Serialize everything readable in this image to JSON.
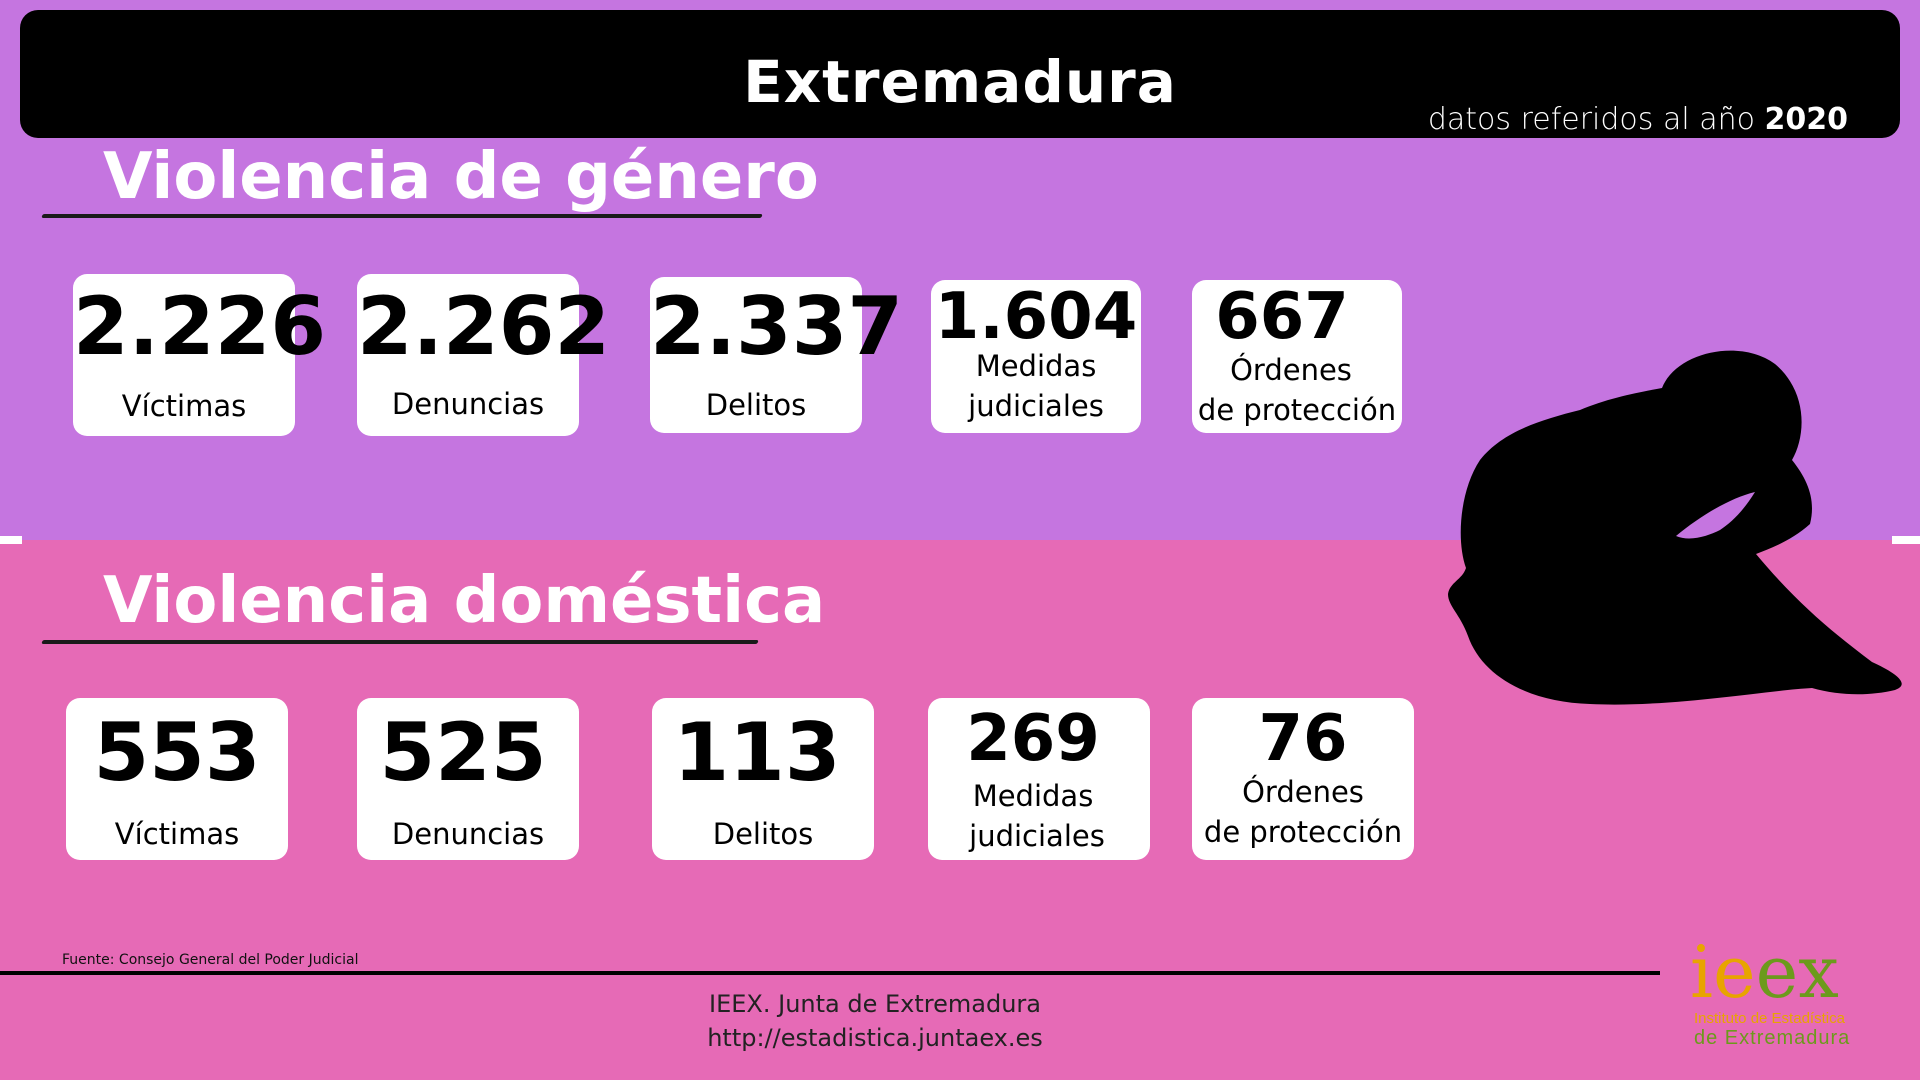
{
  "header": {
    "title": "Extremadura",
    "subtitle_prefix": "datos referidos al año ",
    "year": "2020"
  },
  "genero": {
    "title": "Violencia de género",
    "cards": [
      {
        "value": "2.226",
        "label": "Víctimas"
      },
      {
        "value": "2.262",
        "label": "Denuncias"
      },
      {
        "value": "2.337",
        "label": "Delitos"
      },
      {
        "value": "1.604",
        "label_line1": "Medidas",
        "label_line2": "judiciales"
      },
      {
        "value": "667",
        "label_line1": "Órdenes",
        "label_line2": "de protección"
      }
    ]
  },
  "domestica": {
    "title": "Violencia doméstica",
    "cards": [
      {
        "value": "553",
        "label": "Víctimas"
      },
      {
        "value": "525",
        "label": "Denuncias"
      },
      {
        "value": "113",
        "label": "Delitos"
      },
      {
        "value": "269",
        "label_line1": "Medidas",
        "label_line2": "judiciales"
      },
      {
        "value": "76",
        "label_line1": "Órdenes",
        "label_line2": "de protección"
      }
    ]
  },
  "source": "Fuente: Consejo General del Poder Judicial",
  "footer": {
    "line1": "IEEX. Junta de Extremadura",
    "line2": "http://estadistica.juntaex.es"
  },
  "logo": {
    "main": "ieex",
    "line1": "Instituto de Estadística",
    "line2": "de Extremadura",
    "colors": {
      "orange": "#e8a400",
      "green": "#6c9a1c"
    }
  },
  "colors": {
    "top_bg": "#c575e0",
    "bottom_bg": "#e66ab6",
    "title_bar": "#000000"
  }
}
